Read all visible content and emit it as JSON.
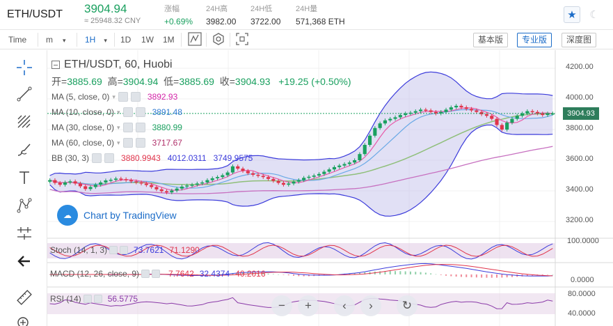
{
  "ticker": {
    "pair": "ETH/USDT",
    "price": "3904.94",
    "cny": "≈ 25948.32 CNY",
    "stats": [
      {
        "label": "涨幅",
        "value": "+0.69%"
      },
      {
        "label": "24H高",
        "value": "3982.00"
      },
      {
        "label": "24H低",
        "value": "3722.00"
      },
      {
        "label": "24H量",
        "value": "571,368 ETH"
      }
    ],
    "star_icon": "star-icon",
    "theme_icon": "moon-icon"
  },
  "toolbar": {
    "time_label": "Time",
    "m_label": "m",
    "interval_selected": "1H",
    "intervals": [
      "1D",
      "1W",
      "1M"
    ],
    "view_buttons": [
      "基本版",
      "专业版",
      "深度图"
    ],
    "active_view": "专业版"
  },
  "chart": {
    "title": "ETH/USDT, 60, Huobi",
    "ohlc": {
      "open_label": "开=",
      "open": "3885.69",
      "high_label": "高=",
      "high": "3904.94",
      "low_label": "低=",
      "low": "3885.69",
      "close_label": "收=",
      "close": "3904.93",
      "change": "+19.25 (+0.50%)"
    },
    "indicators": [
      {
        "name": "MA (5, close, 0)",
        "value": "3892.93",
        "color": "#d424a8"
      },
      {
        "name": "MA (10, close, 0)",
        "value": "3891.48",
        "color": "#2e7ad1"
      },
      {
        "name": "MA (30, close, 0)",
        "value": "3880.99",
        "color": "#1aa05f"
      },
      {
        "name": "MA (60, close, 0)",
        "value": "3717.67",
        "color": "#b0306a"
      }
    ],
    "bb": {
      "name": "BB (30, 3)",
      "v1": "3880.9943",
      "v2": "4012.0311",
      "v3": "3749.9575"
    },
    "current_price_tag": "3904.93",
    "y_axis_labels": [
      "4200.00",
      "4000.00",
      "3800.00",
      "3600.00",
      "3400.00",
      "3200.00"
    ],
    "watermark": "Chart by TradingView",
    "stoch": {
      "name": "Stoch (14, 1, 3)",
      "v1": "73.7621",
      "v2": "71.1290",
      "axis": "100.0000"
    },
    "macd": {
      "name": "MACD (12, 26, close, 9)",
      "v1": "-7.7642",
      "v2": "32.4374",
      "v3": "40.2016",
      "axis": "0.0000"
    },
    "rsi": {
      "name": "RSI (14)",
      "v1": "56.5775",
      "axis_top": "80.0000",
      "axis_bottom": "40.0000"
    },
    "colors": {
      "up": "#1aa05f",
      "down": "#e0344b",
      "band_fill": "#c8c6ec",
      "band_line": "#3b3bdb"
    },
    "series_close": [
      3470,
      3452,
      3440,
      3455,
      3462,
      3448,
      3430,
      3412,
      3425,
      3440,
      3455,
      3468,
      3472,
      3480,
      3476,
      3470,
      3462,
      3455,
      3448,
      3438,
      3425,
      3410,
      3398,
      3390,
      3402,
      3415,
      3428,
      3435,
      3440,
      3448,
      3455,
      3470,
      3482,
      3490,
      3502,
      3520,
      3560,
      3545,
      3530,
      3515,
      3505,
      3498,
      3490,
      3478,
      3465,
      3452,
      3440,
      3448,
      3460,
      3470,
      3485,
      3492,
      3500,
      3510,
      3525,
      3540,
      3555,
      3565,
      3575,
      3585,
      3600,
      3640,
      3700,
      3760,
      3810,
      3840,
      3860,
      3870,
      3880,
      3895,
      3905,
      3910,
      3920,
      3930,
      3925,
      3915,
      3905,
      3915,
      3930,
      3945,
      3955,
      3945,
      3935,
      3925,
      3915,
      3900,
      3890,
      3870,
      3830,
      3800,
      3845,
      3870,
      3890,
      3905,
      3920,
      3915,
      3905,
      3895,
      3905,
      3905
    ]
  },
  "tools": [
    "crosshair-icon",
    "trend-line-icon",
    "fib-icon",
    "brush-icon",
    "text-icon",
    "pattern-icon",
    "measure-icon",
    "back-arrow-icon",
    "ruler-icon",
    "zoom-in-icon"
  ],
  "controls": [
    "zoom-out-icon",
    "zoom-in-icon",
    "scroll-left-icon",
    "scroll-right-icon",
    "reset-icon"
  ]
}
